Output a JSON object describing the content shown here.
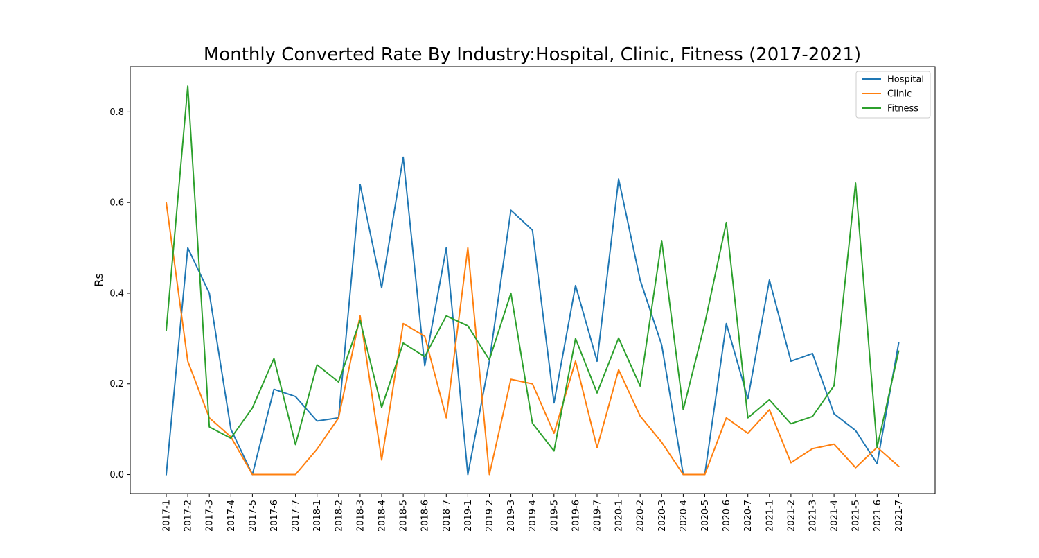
{
  "chart_data": {
    "type": "line",
    "title": "Monthly Converted Rate By Industry:Hospital, Clinic, Fitness (2017-2021)",
    "xlabel": "",
    "ylabel": "Rs",
    "ylim": [
      -0.042,
      0.9
    ],
    "yticks": [
      "0.0",
      "0.2",
      "0.4",
      "0.6",
      "0.8"
    ],
    "grid": false,
    "legend_position": "top-right",
    "categories": [
      "2017-1",
      "2017-2",
      "2017-3",
      "2017-4",
      "2017-5",
      "2017-6",
      "2017-7",
      "2018-1",
      "2018-2",
      "2018-3",
      "2018-4",
      "2018-5",
      "2018-6",
      "2018-7",
      "2019-1",
      "2019-2",
      "2019-3",
      "2019-4",
      "2019-5",
      "2019-6",
      "2019-7",
      "2020-1",
      "2020-2",
      "2020-3",
      "2020-4",
      "2020-5",
      "2020-6",
      "2020-7",
      "2021-1",
      "2021-2",
      "2021-3",
      "2021-4",
      "2021-5",
      "2021-6",
      "2021-7"
    ],
    "series": [
      {
        "name": "Hospital",
        "color": "#1f77b4",
        "values": [
          0.0,
          0.5,
          0.4,
          0.1,
          0.0,
          0.188,
          0.172,
          0.118,
          0.125,
          0.64,
          0.412,
          0.7,
          0.24,
          0.5,
          0.0,
          0.25,
          0.583,
          0.539,
          0.158,
          0.417,
          0.25,
          0.652,
          0.429,
          0.286,
          0.0,
          0.0,
          0.333,
          0.167,
          0.429,
          0.25,
          0.267,
          0.134,
          0.097,
          0.024,
          0.29
        ]
      },
      {
        "name": "Clinic",
        "color": "#ff7f0e",
        "values": [
          0.6,
          0.25,
          0.125,
          0.083,
          0.0,
          0.0,
          0.0,
          0.056,
          0.125,
          0.35,
          0.032,
          0.333,
          0.305,
          0.125,
          0.5,
          0.0,
          0.21,
          0.2,
          0.091,
          0.25,
          0.059,
          0.231,
          0.129,
          0.071,
          0.0,
          0.0,
          0.125,
          0.091,
          0.143,
          0.026,
          0.057,
          0.067,
          0.015,
          0.06,
          0.018
        ]
      },
      {
        "name": "Fitness",
        "color": "#2ca02c",
        "values": [
          0.318,
          0.857,
          0.105,
          0.08,
          0.147,
          0.256,
          0.066,
          0.242,
          0.204,
          0.34,
          0.148,
          0.29,
          0.26,
          0.35,
          0.328,
          0.253,
          0.4,
          0.113,
          0.052,
          0.3,
          0.18,
          0.301,
          0.195,
          0.516,
          0.143,
          0.333,
          0.556,
          0.125,
          0.165,
          0.112,
          0.128,
          0.196,
          0.643,
          0.06,
          0.272
        ]
      }
    ]
  }
}
